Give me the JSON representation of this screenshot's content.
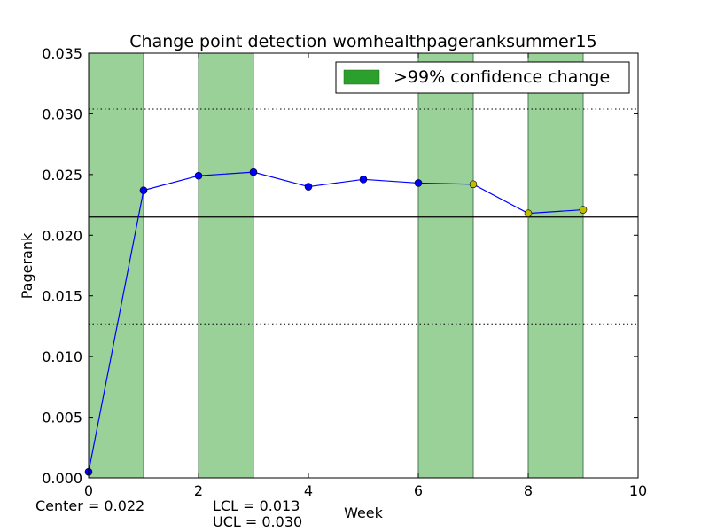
{
  "chart_data": {
    "type": "line",
    "title": "Change point detection womhealthpageranksummer15",
    "xlabel": "Week",
    "ylabel": "Pagerank",
    "xlim": [
      0,
      10
    ],
    "ylim": [
      0,
      0.035
    ],
    "xticks": [
      "0",
      "2",
      "4",
      "6",
      "8",
      "10"
    ],
    "yticks": [
      "0.000",
      "0.005",
      "0.010",
      "0.015",
      "0.020",
      "0.025",
      "0.030",
      "0.035"
    ],
    "x": [
      0,
      1,
      2,
      3,
      4,
      5,
      6,
      7,
      8,
      9
    ],
    "values": [
      0.0005,
      0.0237,
      0.0249,
      0.0252,
      0.024,
      0.0246,
      0.0243,
      0.0242,
      0.0218,
      0.0221
    ],
    "point_colors": [
      "blue",
      "blue",
      "blue",
      "blue",
      "blue",
      "blue",
      "blue",
      "yellow",
      "yellow",
      "yellow"
    ],
    "center": 0.0215,
    "lcl": 0.0127,
    "ucl": 0.0304,
    "change_regions": [
      [
        0,
        1
      ],
      [
        2,
        3
      ],
      [
        6,
        7
      ],
      [
        8,
        9
      ]
    ],
    "legend": {
      "label": ">99% confidence change",
      "position": "top-right"
    },
    "grid": false
  },
  "annotations": {
    "center": "Center = 0.022",
    "lcl": "LCL = 0.013",
    "ucl": "UCL = 0.030"
  },
  "colors": {
    "line": "#0000ff",
    "marker_blue": "#0000ff",
    "marker_yellow": "#bfbf00",
    "region_fill": "#99d199",
    "region_edge": "#4d7a55",
    "legend_patch": "#2ca02c"
  }
}
